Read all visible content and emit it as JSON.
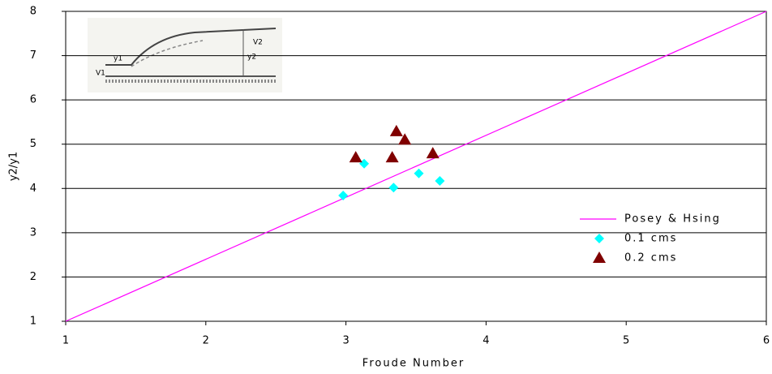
{
  "chart_data": {
    "type": "scatter",
    "x_label": "Froude Number",
    "y_label": "y2/y1",
    "xlim": [
      1,
      6
    ],
    "xticks": [
      1,
      2,
      3,
      4,
      5,
      6
    ],
    "ylim": [
      1,
      8
    ],
    "yticks": [
      1,
      2,
      3,
      4,
      5,
      6,
      7,
      8
    ],
    "grid": true,
    "legend": "right",
    "inset_labels": [
      "V1",
      "y1",
      "y2",
      "V2"
    ],
    "series": [
      {
        "name": "Posey & Hsing",
        "color": "#ff00ff",
        "marker": "line",
        "x": [
          1,
          6
        ],
        "values": [
          1,
          8
        ]
      },
      {
        "name": "0.1 cms",
        "color": "#00ffff",
        "marker": "diamond",
        "x": [
          2.98,
          3.13,
          3.34,
          3.52,
          3.67
        ],
        "values": [
          3.84,
          4.56,
          4.02,
          4.34,
          4.17
        ]
      },
      {
        "name": "0.2 cms",
        "color": "#800000",
        "marker": "triangle",
        "x": [
          3.07,
          3.33,
          3.36,
          3.42,
          3.62
        ],
        "values": [
          4.7,
          4.7,
          5.29,
          5.1,
          4.79
        ]
      }
    ]
  }
}
